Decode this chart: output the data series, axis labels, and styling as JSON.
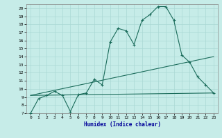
{
  "xlabel": "Humidex (Indice chaleur)",
  "background_color": "#c6ece8",
  "grid_color": "#aad8d4",
  "line_color": "#1a6b5a",
  "xlim": [
    -0.5,
    23.5
  ],
  "ylim": [
    7,
    20.5
  ],
  "xticks": [
    0,
    1,
    2,
    3,
    4,
    5,
    6,
    7,
    8,
    9,
    10,
    11,
    12,
    13,
    14,
    15,
    16,
    17,
    18,
    19,
    20,
    21,
    22,
    23
  ],
  "yticks": [
    7,
    8,
    9,
    10,
    11,
    12,
    13,
    14,
    15,
    16,
    17,
    18,
    19,
    20
  ],
  "line1_x": [
    0,
    1,
    2,
    3,
    4,
    5,
    6,
    7,
    8,
    9,
    10,
    11,
    12,
    13,
    14,
    15,
    16,
    17,
    18,
    19,
    20,
    21,
    22,
    23
  ],
  "line1_y": [
    7.0,
    8.8,
    9.2,
    9.7,
    9.2,
    7.2,
    9.3,
    9.5,
    11.2,
    10.5,
    15.8,
    17.5,
    17.2,
    15.5,
    18.5,
    19.2,
    20.2,
    20.2,
    18.5,
    14.2,
    13.3,
    11.5,
    10.5,
    9.5
  ],
  "line2_x": [
    0,
    23
  ],
  "line2_y": [
    9.2,
    9.5
  ],
  "line3_x": [
    0,
    23
  ],
  "line3_y": [
    9.2,
    14.0
  ],
  "figsize": [
    3.2,
    2.0
  ],
  "dpi": 100
}
